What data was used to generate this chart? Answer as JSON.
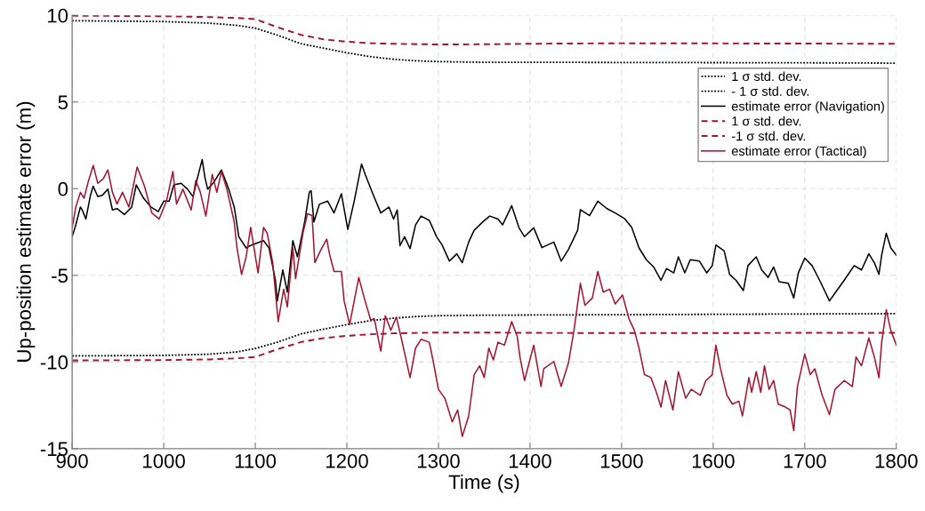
{
  "chart_data": {
    "type": "line",
    "xlabel": "Time (s)",
    "ylabel": "Up-position estimate error (m)",
    "xlim": [
      900,
      1800
    ],
    "xticks": [
      900,
      1000,
      1100,
      1200,
      1300,
      1400,
      1500,
      1600,
      1700,
      1800
    ],
    "ylim": [
      -15,
      10
    ],
    "yticks": [
      -15,
      -10,
      -5,
      0,
      5,
      10
    ],
    "grid": true,
    "legend": "top right",
    "series": [
      {
        "name": "1 σ std. dev.",
        "color": "#000000",
        "line_style": "dotted",
        "x": [
          900,
          1000,
          1050,
          1080,
          1100,
          1125,
          1150,
          1175,
          1200,
          1225,
          1250,
          1275,
          1300,
          1350,
          1400,
          1500,
          1600,
          1700,
          1800
        ],
        "values": [
          9.69,
          9.64,
          9.55,
          9.42,
          9.26,
          8.84,
          8.36,
          8.1,
          7.84,
          7.62,
          7.47,
          7.38,
          7.33,
          7.29,
          7.29,
          7.28,
          7.27,
          7.26,
          7.24
        ]
      },
      {
        "name": "- 1 σ std. dev.",
        "color": "#000000",
        "line_style": "dotted",
        "x": [
          900,
          1000,
          1050,
          1080,
          1100,
          1125,
          1150,
          1175,
          1200,
          1225,
          1250,
          1275,
          1300,
          1350,
          1400,
          1500,
          1600,
          1700,
          1800
        ],
        "values": [
          -9.65,
          -9.62,
          -9.55,
          -9.42,
          -9.22,
          -8.84,
          -8.38,
          -8.1,
          -7.84,
          -7.62,
          -7.48,
          -7.38,
          -7.33,
          -7.3,
          -7.29,
          -7.27,
          -7.25,
          -7.23,
          -7.21
        ]
      },
      {
        "name": "estimate error (Navigation)",
        "color": "#000000",
        "line_style": "solid",
        "x": [
          900,
          904,
          909,
          911,
          915,
          920,
          923,
          928,
          933,
          939,
          944,
          949,
          957,
          965,
          970,
          978,
          986,
          994,
          1000,
          1006,
          1011,
          1019,
          1026,
          1032,
          1037,
          1042,
          1045,
          1048,
          1055,
          1063,
          1071,
          1077,
          1082,
          1090,
          1096,
          1109,
          1115,
          1122,
          1124,
          1130,
          1135,
          1141,
          1146,
          1154,
          1159,
          1161,
          1164,
          1170,
          1179,
          1186,
          1194,
          1201,
          1208,
          1216,
          1220,
          1229,
          1237,
          1246,
          1251,
          1255,
          1258,
          1263,
          1269,
          1275,
          1281,
          1290,
          1298,
          1304,
          1312,
          1320,
          1326,
          1333,
          1339,
          1349,
          1356,
          1365,
          1370,
          1380,
          1388,
          1394,
          1404,
          1413,
          1426,
          1434,
          1442,
          1452,
          1455,
          1465,
          1474,
          1484,
          1493,
          1503,
          1511,
          1519,
          1527,
          1535,
          1543,
          1549,
          1557,
          1562,
          1569,
          1575,
          1585,
          1593,
          1599,
          1603,
          1612,
          1618,
          1625,
          1633,
          1638,
          1647,
          1653,
          1660,
          1666,
          1672,
          1682,
          1688,
          1693,
          1700,
          1708,
          1717,
          1727,
          1735,
          1743,
          1754,
          1762,
          1770,
          1776,
          1781,
          1784,
          1789,
          1794,
          1800
        ],
        "values": [
          -2.77,
          -2.09,
          -1.06,
          -1.23,
          -1.75,
          -0.38,
          0.14,
          -0.46,
          -0.38,
          -0.03,
          -1.23,
          -1.15,
          -1.49,
          -1.06,
          0.22,
          -0.55,
          -1.06,
          -1.32,
          -0.72,
          -0.72,
          0.22,
          0.31,
          -0.03,
          -0.46,
          0.65,
          1.68,
          0.65,
          -0.03,
          0.39,
          1.08,
          -0.03,
          -1.06,
          -2.77,
          -3.42,
          -3.25,
          -3.0,
          -3.42,
          -5.29,
          -6.48,
          -4.69,
          -5.97,
          -3.0,
          -3.93,
          -1.89,
          -0.2,
          -0.12,
          -1.92,
          -0.9,
          -0.72,
          -1.4,
          -0.29,
          -2.35,
          -0.72,
          1.42,
          0.82,
          -0.38,
          -1.4,
          -1.06,
          -1.75,
          -1.23,
          -3.29,
          -2.77,
          -3.46,
          -2.09,
          -1.58,
          -1.83,
          -2.77,
          -3.25,
          -4.18,
          -3.76,
          -4.27,
          -3.08,
          -2.4,
          -1.89,
          -1.58,
          -1.75,
          -2.09,
          -0.98,
          -2.26,
          -2.77,
          -2.26,
          -3.4,
          -3.08,
          -4.18,
          -3.5,
          -2.4,
          -1.21,
          -1.55,
          -0.72,
          -1.15,
          -1.4,
          -1.72,
          -2.23,
          -3.42,
          -4.1,
          -4.52,
          -5.29,
          -4.61,
          -4.86,
          -3.93,
          -4.86,
          -4.1,
          -4.18,
          -4.86,
          -4.44,
          -3.25,
          -3.59,
          -4.95,
          -5.29,
          -5.88,
          -4.44,
          -3.93,
          -4.69,
          -5.12,
          -4.52,
          -5.37,
          -5.46,
          -6.31,
          -4.86,
          -4.01,
          -4.44,
          -5.37,
          -6.48,
          -5.88,
          -5.29,
          -4.44,
          -4.69,
          -3.76,
          -4.27,
          -4.95,
          -3.84,
          -2.57,
          -3.42,
          -3.84
        ]
      },
      {
        "name": "1 σ std. dev.",
        "color": "#a2142f",
        "line_style": "dashed",
        "x": [
          900,
          1000,
          1050,
          1080,
          1100,
          1125,
          1150,
          1175,
          1200,
          1225,
          1250,
          1300,
          1350,
          1400,
          1500,
          1600,
          1700,
          1800
        ],
        "values": [
          9.98,
          9.95,
          9.9,
          9.85,
          9.78,
          9.3,
          8.87,
          8.61,
          8.48,
          8.39,
          8.36,
          8.32,
          8.33,
          8.36,
          8.39,
          8.38,
          8.37,
          8.36
        ]
      },
      {
        "name": "-1 σ std. dev.",
        "color": "#a2142f",
        "line_style": "dashed",
        "x": [
          900,
          1000,
          1050,
          1080,
          1100,
          1125,
          1150,
          1175,
          1200,
          1225,
          1250,
          1300,
          1350,
          1400,
          1500,
          1600,
          1700,
          1800
        ],
        "values": [
          -9.91,
          -9.89,
          -9.85,
          -9.79,
          -9.71,
          -9.25,
          -8.85,
          -8.62,
          -8.49,
          -8.4,
          -8.35,
          -8.3,
          -8.3,
          -8.32,
          -8.33,
          -8.33,
          -8.32,
          -8.32
        ]
      },
      {
        "name": "estimate error (Tactical)",
        "color": "#a2142f",
        "line_style": "solid",
        "x": [
          900,
          904,
          909,
          913,
          918,
          923,
          928,
          934,
          939,
          944,
          949,
          955,
          962,
          971,
          979,
          987,
          995,
          1003,
          1010,
          1014,
          1021,
          1030,
          1035,
          1040,
          1046,
          1053,
          1058,
          1063,
          1069,
          1077,
          1080,
          1085,
          1090,
          1095,
          1103,
          1109,
          1113,
          1119,
          1125,
          1131,
          1135,
          1141,
          1144,
          1152,
          1157,
          1162,
          1165,
          1171,
          1178,
          1181,
          1186,
          1194,
          1197,
          1203,
          1208,
          1213,
          1219,
          1226,
          1230,
          1237,
          1242,
          1248,
          1254,
          1259,
          1269,
          1275,
          1281,
          1290,
          1294,
          1300,
          1307,
          1315,
          1321,
          1326,
          1333,
          1339,
          1345,
          1350,
          1355,
          1360,
          1365,
          1372,
          1380,
          1386,
          1389,
          1394,
          1404,
          1412,
          1415,
          1426,
          1434,
          1442,
          1448,
          1455,
          1460,
          1468,
          1474,
          1480,
          1487,
          1493,
          1501,
          1508,
          1514,
          1519,
          1525,
          1532,
          1538,
          1543,
          1548,
          1556,
          1562,
          1570,
          1576,
          1586,
          1592,
          1599,
          1603,
          1608,
          1615,
          1621,
          1628,
          1632,
          1639,
          1642,
          1647,
          1652,
          1656,
          1661,
          1666,
          1671,
          1679,
          1684,
          1688,
          1692,
          1700,
          1706,
          1711,
          1719,
          1727,
          1733,
          1743,
          1752,
          1756,
          1762,
          1770,
          1776,
          1781,
          1784,
          1789,
          1794,
          1800
        ],
        "values": [
          -2.26,
          -1.06,
          -0.21,
          -0.55,
          0.48,
          1.34,
          0.31,
          0.57,
          1.08,
          -0.21,
          -0.89,
          -0.21,
          -1.06,
          1.25,
          0.14,
          -1.4,
          -1.75,
          -0.72,
          0.99,
          -0.89,
          -0.03,
          -1.23,
          0.48,
          -0.21,
          -1.58,
          0.82,
          -0.21,
          0.99,
          -0.03,
          -1.92,
          -3.42,
          -4.95,
          -3.93,
          -2.23,
          -4.86,
          -2.23,
          -2.57,
          -4.27,
          -7.67,
          -5.8,
          -6.82,
          -3.42,
          -5.2,
          -2.57,
          -1.45,
          -1.55,
          -4.27,
          -3.59,
          -2.91,
          -3.76,
          -4.78,
          -4.78,
          -6.48,
          -7.84,
          -6.48,
          -5.12,
          -6.31,
          -7.59,
          -7.5,
          -9.37,
          -7.33,
          -8.18,
          -7.41,
          -8.52,
          -10.9,
          -9.2,
          -8.69,
          -8.86,
          -9.88,
          -11.58,
          -12.09,
          -13.45,
          -12.77,
          -14.3,
          -13.11,
          -10.73,
          -10.22,
          -10.9,
          -9.2,
          -9.88,
          -8.86,
          -9.03,
          -7.67,
          -8.52,
          -9.71,
          -11.07,
          -9.03,
          -11.41,
          -10.39,
          -9.97,
          -11.41,
          -10.05,
          -8.18,
          -5.46,
          -6.73,
          -6.31,
          -4.78,
          -5.97,
          -5.8,
          -6.65,
          -6.14,
          -7.5,
          -8.18,
          -9.2,
          -10.73,
          -10.9,
          -11.75,
          -12.6,
          -11.07,
          -12.77,
          -10.56,
          -12.09,
          -11.58,
          -11.92,
          -11.07,
          -10.73,
          -9.03,
          -10.39,
          -11.92,
          -12.43,
          -12.26,
          -13.11,
          -10.9,
          -11.75,
          -10.56,
          -11.75,
          -10.22,
          -11.58,
          -11.07,
          -12.43,
          -12.6,
          -12.77,
          -13.96,
          -11.41,
          -9.54,
          -10.73,
          -10.39,
          -11.92,
          -13.03,
          -11.58,
          -11.07,
          -11.41,
          -9.71,
          -10.22,
          -8.61,
          -9.71,
          -10.9,
          -8.86,
          -6.99,
          -8.18,
          -9.03
        ]
      }
    ]
  }
}
